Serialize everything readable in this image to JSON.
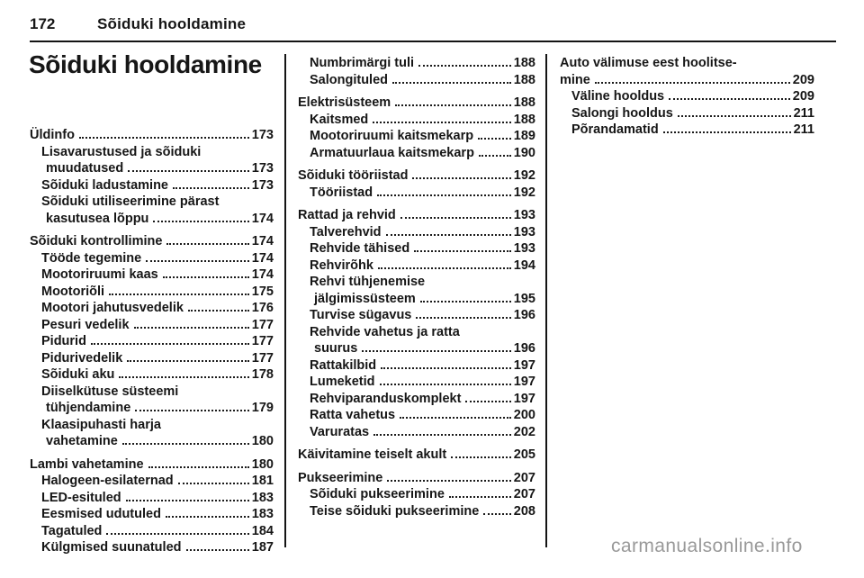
{
  "header": {
    "page_number": "172",
    "chapter": "Sõiduki hooldamine"
  },
  "title": "Sõiduki hooldamine",
  "watermark": "carmanualsonline.info",
  "toc": {
    "columns": [
      {
        "entries": [
          {
            "level": 0,
            "lines": [
              "Üldinfo"
            ],
            "page": "173"
          },
          {
            "level": 1,
            "lines": [
              "Lisavarustused ja sõiduki",
              "muudatused"
            ],
            "page": "173"
          },
          {
            "level": 1,
            "lines": [
              "Sõiduki ladustamine"
            ],
            "page": "173"
          },
          {
            "level": 1,
            "lines": [
              "Sõiduki utiliseerimine pärast",
              "kasutusea lõppu"
            ],
            "page": "174"
          },
          {
            "level": 0,
            "lines": [
              "Sõiduki kontrollimine"
            ],
            "page": "174"
          },
          {
            "level": 1,
            "lines": [
              "Tööde tegemine"
            ],
            "page": "174"
          },
          {
            "level": 1,
            "lines": [
              "Mootoriruumi kaas"
            ],
            "page": "174"
          },
          {
            "level": 1,
            "lines": [
              "Mootoriõli"
            ],
            "page": "175"
          },
          {
            "level": 1,
            "lines": [
              "Mootori jahutusvedelik"
            ],
            "page": "176"
          },
          {
            "level": 1,
            "lines": [
              "Pesuri vedelik"
            ],
            "page": "177"
          },
          {
            "level": 1,
            "lines": [
              "Pidurid"
            ],
            "page": "177"
          },
          {
            "level": 1,
            "lines": [
              "Pidurivedelik"
            ],
            "page": "177"
          },
          {
            "level": 1,
            "lines": [
              "Sõiduki aku"
            ],
            "page": "178"
          },
          {
            "level": 1,
            "lines": [
              "Diiselkütuse süsteemi",
              "tühjendamine"
            ],
            "page": "179"
          },
          {
            "level": 1,
            "lines": [
              "Klaasipuhasti harja",
              "vahetamine"
            ],
            "page": "180"
          },
          {
            "level": 0,
            "lines": [
              "Lambi vahetamine"
            ],
            "page": "180"
          },
          {
            "level": 1,
            "lines": [
              "Halogeen-esilaternad"
            ],
            "page": "181"
          },
          {
            "level": 1,
            "lines": [
              "LED-esituled"
            ],
            "page": "183"
          },
          {
            "level": 1,
            "lines": [
              "Eesmised udutuled"
            ],
            "page": "183"
          },
          {
            "level": 1,
            "lines": [
              "Tagatuled"
            ],
            "page": "184"
          },
          {
            "level": 1,
            "lines": [
              "Külgmised suunatuled"
            ],
            "page": "187"
          }
        ]
      },
      {
        "entries": [
          {
            "level": 1,
            "lines": [
              "Numbrimärgi tuli"
            ],
            "page": "188"
          },
          {
            "level": 1,
            "lines": [
              "Salongituled"
            ],
            "page": "188"
          },
          {
            "level": 0,
            "lines": [
              "Elektrisüsteem"
            ],
            "page": "188"
          },
          {
            "level": 1,
            "lines": [
              "Kaitsmed"
            ],
            "page": "188"
          },
          {
            "level": 1,
            "lines": [
              "Mootoriruumi kaitsmekarp"
            ],
            "page": "189"
          },
          {
            "level": 1,
            "lines": [
              "Armatuurlaua kaitsmekarp"
            ],
            "page": "190"
          },
          {
            "level": 0,
            "lines": [
              "Sõiduki tööriistad"
            ],
            "page": "192"
          },
          {
            "level": 1,
            "lines": [
              "Tööriistad"
            ],
            "page": "192"
          },
          {
            "level": 0,
            "lines": [
              "Rattad ja rehvid"
            ],
            "page": "193"
          },
          {
            "level": 1,
            "lines": [
              "Talverehvid"
            ],
            "page": "193"
          },
          {
            "level": 1,
            "lines": [
              "Rehvide tähised"
            ],
            "page": "193"
          },
          {
            "level": 1,
            "lines": [
              "Rehvirõhk"
            ],
            "page": "194"
          },
          {
            "level": 1,
            "lines": [
              "Rehvi tühjenemise",
              "jälgimissüsteem"
            ],
            "page": "195"
          },
          {
            "level": 1,
            "lines": [
              "Turvise sügavus"
            ],
            "page": "196"
          },
          {
            "level": 1,
            "lines": [
              "Rehvide vahetus ja ratta",
              "suurus"
            ],
            "page": "196"
          },
          {
            "level": 1,
            "lines": [
              "Rattakilbid"
            ],
            "page": "197"
          },
          {
            "level": 1,
            "lines": [
              "Lumeketid"
            ],
            "page": "197"
          },
          {
            "level": 1,
            "lines": [
              "Rehviparanduskomplekt"
            ],
            "page": "197"
          },
          {
            "level": 1,
            "lines": [
              "Ratta vahetus"
            ],
            "page": "200"
          },
          {
            "level": 1,
            "lines": [
              "Varuratas"
            ],
            "page": "202"
          },
          {
            "level": 0,
            "lines": [
              "Käivitamine teiselt akult"
            ],
            "page": "205"
          },
          {
            "level": 0,
            "lines": [
              "Pukseerimine"
            ],
            "page": "207"
          },
          {
            "level": 1,
            "lines": [
              "Sõiduki pukseerimine"
            ],
            "page": "207"
          },
          {
            "level": 1,
            "lines": [
              "Teise sõiduki pukseerimine"
            ],
            "page": "208"
          }
        ]
      },
      {
        "entries": [
          {
            "level": 0,
            "lines": [
              "Auto välimuse eest hoolitse-",
              "mine"
            ],
            "page": "209"
          },
          {
            "level": 1,
            "lines": [
              "Väline hooldus"
            ],
            "page": "209"
          },
          {
            "level": 1,
            "lines": [
              "Salongi hooldus"
            ],
            "page": "211"
          },
          {
            "level": 1,
            "lines": [
              "Põrandamatid"
            ],
            "page": "211"
          }
        ]
      }
    ]
  }
}
